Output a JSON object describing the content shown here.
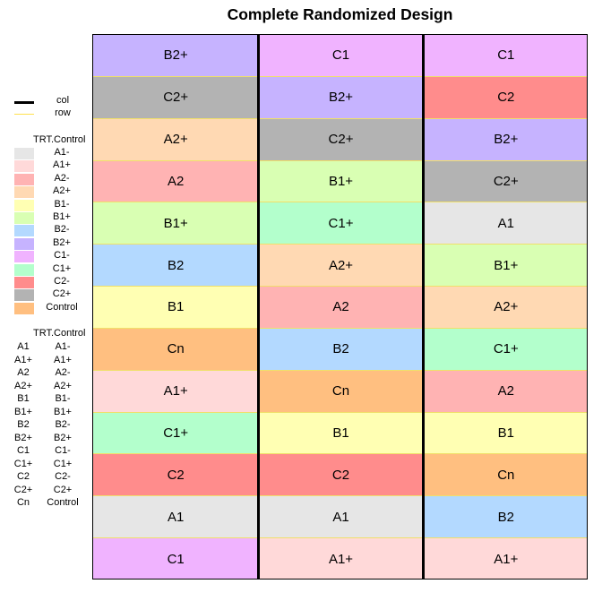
{
  "chart_data": {
    "type": "heatmap",
    "title": "Complete Randomized Design",
    "columns": 3,
    "rows": 13,
    "cells": [
      [
        "B2+",
        "C1",
        "C1"
      ],
      [
        "C2+",
        "B2+",
        "C2"
      ],
      [
        "A2+",
        "C2+",
        "B2+"
      ],
      [
        "A2",
        "B1+",
        "C2+"
      ],
      [
        "B1+",
        "C1+",
        "A1"
      ],
      [
        "B2",
        "A2+",
        "B1+"
      ],
      [
        "B1",
        "A2",
        "A2+"
      ],
      [
        "Cn",
        "B2",
        "C1+"
      ],
      [
        "A1+",
        "Cn",
        "A2"
      ],
      [
        "C1+",
        "B1",
        "B1"
      ],
      [
        "C2",
        "C2",
        "Cn"
      ],
      [
        "A1",
        "A1",
        "B2"
      ],
      [
        "C1",
        "A1+",
        "A1+"
      ]
    ],
    "treatment_colors": {
      "A1": "#e6e6e6",
      "A1+": "#ffd9d9",
      "A2": "#ffb3b3",
      "A2+": "#ffd9b3",
      "B1": "#ffffb3",
      "B1+": "#d9ffb3",
      "B2": "#b3d9ff",
      "B2+": "#c6b3ff",
      "C1": "#f0b3ff",
      "C1+": "#b3ffcc",
      "C2": "#ff8c8c",
      "C2+": "#b3b3b3",
      "Cn": "#ffbf80"
    },
    "line_legend": [
      {
        "label": "col",
        "color": "#000000"
      },
      {
        "label": "row",
        "color": "#ffe14d"
      }
    ],
    "color_legend": {
      "title": "TRT.Control",
      "entries": [
        {
          "key": "A1",
          "label": "A1-"
        },
        {
          "key": "A1+",
          "label": "A1+"
        },
        {
          "key": "A2",
          "label": "A2-"
        },
        {
          "key": "A2+",
          "label": "A2+"
        },
        {
          "key": "B1",
          "label": "B1-"
        },
        {
          "key": "B1+",
          "label": "B1+"
        },
        {
          "key": "B2",
          "label": "B2-"
        },
        {
          "key": "B2+",
          "label": "B2+"
        },
        {
          "key": "C1",
          "label": "C1-"
        },
        {
          "key": "C1+",
          "label": "C1+"
        },
        {
          "key": "C2",
          "label": "C2-"
        },
        {
          "key": "C2+",
          "label": "C2+"
        },
        {
          "key": "Cn",
          "label": "Control"
        }
      ]
    },
    "key_legend": {
      "title": "TRT.Control",
      "entries": [
        [
          "A1",
          "A1-"
        ],
        [
          "A1+",
          "A1+"
        ],
        [
          "A2",
          "A2-"
        ],
        [
          "A2+",
          "A2+"
        ],
        [
          "B1",
          "B1-"
        ],
        [
          "B1+",
          "B1+"
        ],
        [
          "B2",
          "B2-"
        ],
        [
          "B2+",
          "B2+"
        ],
        [
          "C1",
          "C1-"
        ],
        [
          "C1+",
          "C1+"
        ],
        [
          "C2",
          "C2-"
        ],
        [
          "C2+",
          "C2+"
        ],
        [
          "Cn",
          "Control"
        ]
      ]
    }
  }
}
